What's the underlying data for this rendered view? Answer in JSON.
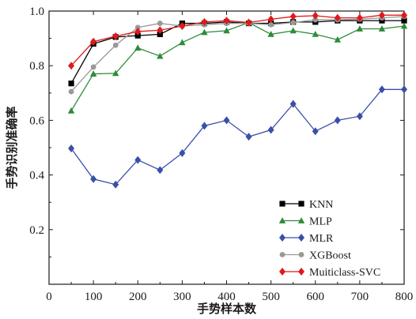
{
  "chart_data": {
    "type": "line",
    "title": "",
    "xlabel": "手势样本数",
    "ylabel": "手势识别准确率",
    "xlim": [
      0,
      800
    ],
    "ylim": [
      0,
      1.0
    ],
    "xticks": [
      0,
      100,
      200,
      300,
      400,
      500,
      600,
      700,
      800
    ],
    "yticks": [
      0.2,
      0.4,
      0.6,
      0.8,
      1.0
    ],
    "xtick_labels": [
      "0",
      "100",
      "200",
      "300",
      "400",
      "500",
      "600",
      "700",
      "800"
    ],
    "ytick_labels": [
      "0.2",
      "0.4",
      "0.6",
      "0.8",
      "1.0"
    ],
    "grid": false,
    "legend_position": "bottom-right",
    "x": [
      50,
      100,
      150,
      200,
      250,
      300,
      350,
      400,
      450,
      500,
      550,
      600,
      650,
      700,
      750,
      800
    ],
    "series": [
      {
        "name": "KNN",
        "color": "#000000",
        "marker": "square",
        "values": [
          0.735,
          0.88,
          0.905,
          0.91,
          0.915,
          0.955,
          0.955,
          0.96,
          0.955,
          0.955,
          0.96,
          0.96,
          0.965,
          0.965,
          0.965,
          0.965
        ]
      },
      {
        "name": "MLP",
        "color": "#2e8b3a",
        "marker": "triangle",
        "values": [
          0.635,
          0.77,
          0.772,
          0.865,
          0.835,
          0.885,
          0.922,
          0.928,
          0.958,
          0.915,
          0.928,
          0.915,
          0.895,
          0.935,
          0.935,
          0.945
        ]
      },
      {
        "name": "MLR",
        "color": "#3a50a8",
        "marker": "diamond",
        "values": [
          0.497,
          0.385,
          0.365,
          0.455,
          0.418,
          0.48,
          0.58,
          0.6,
          0.54,
          0.565,
          0.66,
          0.56,
          0.6,
          0.615,
          0.713,
          0.713
        ]
      },
      {
        "name": "XGBoost",
        "color": "#999999",
        "marker": "circle",
        "values": [
          0.705,
          0.795,
          0.875,
          0.94,
          0.955,
          0.945,
          0.95,
          0.955,
          0.955,
          0.95,
          0.958,
          0.968,
          0.968,
          0.97,
          0.975,
          0.98
        ]
      },
      {
        "name": "Muiticlass-SVC",
        "color": "#e0191b",
        "marker": "diamond",
        "values": [
          0.8,
          0.888,
          0.908,
          0.925,
          0.93,
          0.945,
          0.96,
          0.965,
          0.958,
          0.97,
          0.98,
          0.983,
          0.975,
          0.975,
          0.985,
          0.985
        ]
      }
    ]
  }
}
